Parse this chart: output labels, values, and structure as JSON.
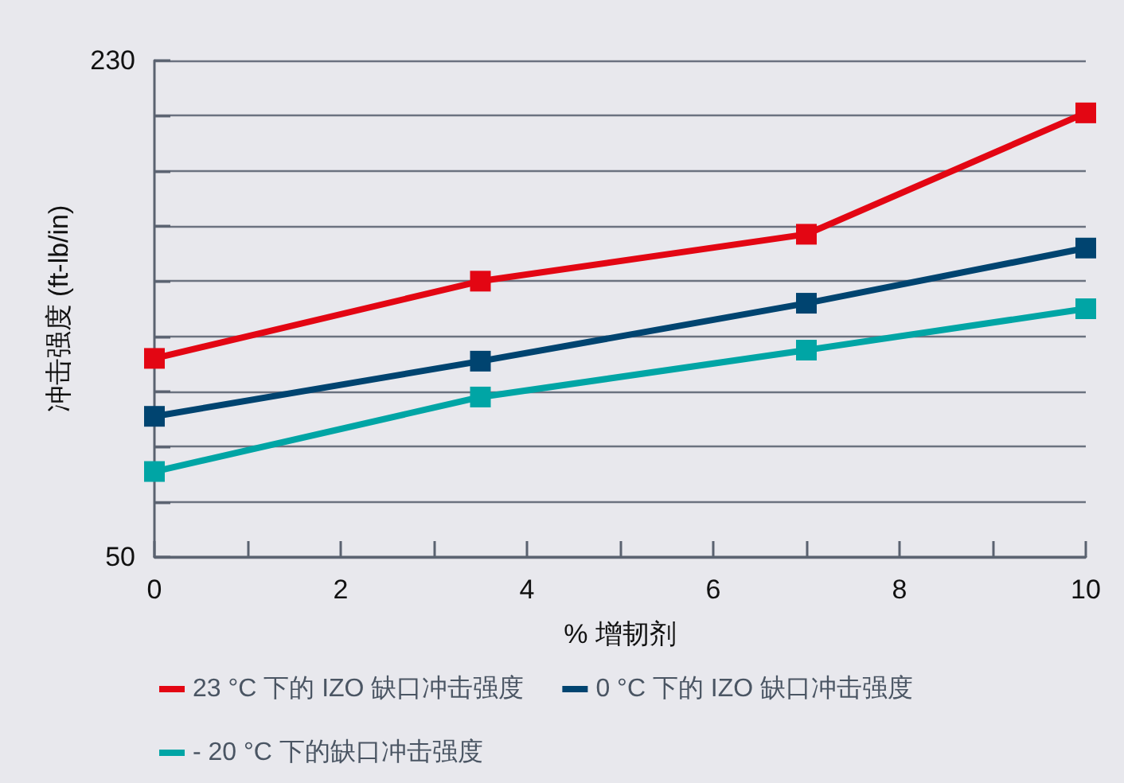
{
  "chart_data": {
    "type": "line",
    "xlabel": "% 增韧剂",
    "ylabel": "冲击强度 (ft-lb/in)",
    "x": [
      0,
      3.5,
      7,
      10
    ],
    "series": [
      {
        "name": "23 °C 下的 IZO 缺口冲击强度",
        "color": "#e30613",
        "values": [
          122,
          150,
          167,
          211
        ]
      },
      {
        "name": "0 °C 下的 IZO 缺口冲击强度",
        "color": "#004470",
        "values": [
          101,
          121,
          142,
          162
        ]
      },
      {
        "name": "- 20 °C 下的缺口冲击强度",
        "color": "#00a5a5",
        "values": [
          81,
          108,
          125,
          140
        ]
      }
    ],
    "xlim": [
      0,
      10
    ],
    "xticks": [
      0,
      {
        "value": 1,
        "label": null
      },
      2,
      {
        "value": 3,
        "label": null
      },
      4,
      {
        "value": 5,
        "label": null
      },
      6,
      {
        "value": 7,
        "label": null
      },
      8,
      {
        "value": 9,
        "label": null
      },
      10
    ],
    "ylim": [
      50,
      230
    ],
    "yticks": [
      50,
      {
        "value": 70,
        "label": null
      },
      {
        "value": 90,
        "label": null
      },
      {
        "value": 110,
        "label": null
      },
      {
        "value": 130,
        "label": null
      },
      {
        "value": 150,
        "label": null
      },
      {
        "value": 170,
        "label": null
      },
      {
        "value": 190,
        "label": null
      },
      {
        "value": 210,
        "label": null
      },
      230
    ],
    "grid": "y",
    "legend": "bottom",
    "marker": "square",
    "line_style": "solid"
  }
}
